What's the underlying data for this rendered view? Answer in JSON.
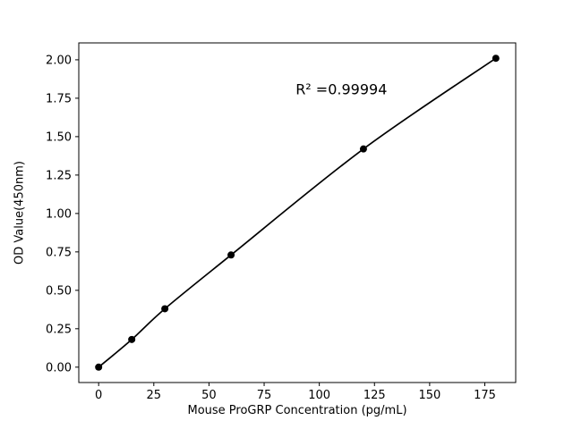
{
  "chart_data": {
    "type": "line",
    "title": "",
    "xlabel": "Mouse ProGRP Concentration (pg/mL)",
    "ylabel": "OD Value(450nm)",
    "x": [
      0,
      15,
      30,
      60,
      120,
      180
    ],
    "y": [
      0.0,
      0.18,
      0.38,
      0.73,
      1.42,
      2.01
    ],
    "xlim": [
      -9,
      189
    ],
    "ylim": [
      -0.1,
      2.11
    ],
    "xticks": [
      0,
      25,
      50,
      75,
      100,
      125,
      150,
      175
    ],
    "ytick_values": [
      0.0,
      0.25,
      0.5,
      0.75,
      1.0,
      1.25,
      1.5,
      1.75,
      2.0
    ],
    "ytick_labels": [
      "0.00",
      "0.25",
      "0.50",
      "0.75",
      "1.00",
      "1.25",
      "1.50",
      "1.75",
      "2.00"
    ],
    "annotation": {
      "text": "R² =0.99994",
      "x": 110,
      "y": 1.81
    },
    "line_color": "#000000",
    "marker_color": "#000000",
    "marker": "circle",
    "grid": false,
    "legend": null,
    "background": "#ffffff"
  }
}
